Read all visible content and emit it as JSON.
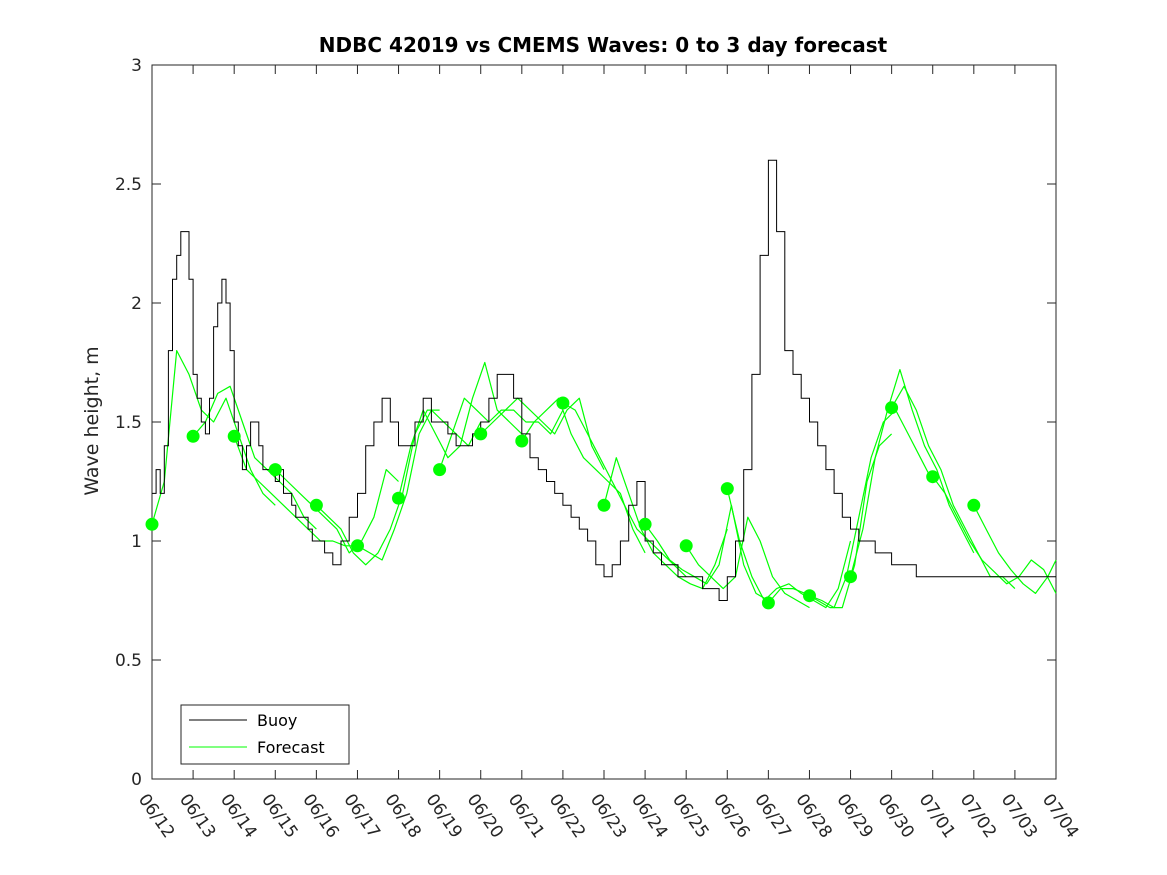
{
  "chart_data": {
    "type": "line",
    "title": "NDBC 42019 vs CMEMS Waves: 0 to 3 day forecast",
    "xlabel": "",
    "ylabel": "Wave height, m",
    "ylim": [
      0,
      3
    ],
    "yticks": [
      0,
      0.5,
      1,
      1.5,
      2,
      2.5,
      3
    ],
    "ytick_labels": [
      "0",
      "0.5",
      "1",
      "1.5",
      "2",
      "2.5",
      "3"
    ],
    "xlim": [
      "06/12",
      "07/04"
    ],
    "xtick_labels": [
      "06/12",
      "06/13",
      "06/14",
      "06/15",
      "06/16",
      "06/17",
      "06/18",
      "06/19",
      "06/20",
      "06/21",
      "06/22",
      "06/23",
      "06/24",
      "06/25",
      "06/26",
      "06/27",
      "06/28",
      "06/29",
      "06/30",
      "07/01",
      "07/02",
      "07/03",
      "07/04"
    ],
    "legend": {
      "placement": "bottom-left",
      "entries": [
        "Buoy",
        "Forecast"
      ]
    },
    "colors": {
      "buoy": "#000000",
      "forecast": "#00ff00",
      "axis": "#262626"
    },
    "series": [
      {
        "name": "Buoy",
        "color": "#000000",
        "x": [
          0,
          0.1,
          0.2,
          0.3,
          0.4,
          0.5,
          0.6,
          0.7,
          0.8,
          0.9,
          1.0,
          1.1,
          1.2,
          1.3,
          1.4,
          1.5,
          1.6,
          1.7,
          1.8,
          1.9,
          2.0,
          2.1,
          2.2,
          2.3,
          2.4,
          2.5,
          2.6,
          2.7,
          2.8,
          2.9,
          3.0,
          3.1,
          3.2,
          3.3,
          3.4,
          3.5,
          3.6,
          3.7,
          3.8,
          3.9,
          4.0,
          4.2,
          4.4,
          4.6,
          4.8,
          5.0,
          5.2,
          5.4,
          5.6,
          5.8,
          6.0,
          6.2,
          6.4,
          6.6,
          6.8,
          7.0,
          7.2,
          7.4,
          7.6,
          7.8,
          8.0,
          8.2,
          8.4,
          8.6,
          8.8,
          9.0,
          9.2,
          9.4,
          9.6,
          9.8,
          10.0,
          10.2,
          10.4,
          10.6,
          10.8,
          11.0,
          11.2,
          11.4,
          11.6,
          11.8,
          12.0,
          12.2,
          12.4,
          12.6,
          12.8,
          13.0,
          13.2,
          13.4,
          13.6,
          13.8,
          14.0,
          14.2,
          14.4,
          14.6,
          14.8,
          15.0,
          15.2,
          15.4,
          15.6,
          15.8,
          16.0,
          16.2,
          16.4,
          16.6,
          16.8,
          17.0,
          17.2,
          17.4,
          17.6,
          17.8,
          18.0,
          18.2,
          18.4,
          18.6,
          18.8,
          19.0,
          19.2,
          19.4,
          19.6,
          19.8,
          20.0,
          20.2,
          20.4,
          20.6,
          20.8,
          21.0,
          21.2,
          21.4,
          21.6,
          21.8,
          22.0
        ],
        "values": [
          1.2,
          1.3,
          1.2,
          1.4,
          1.8,
          2.1,
          2.2,
          2.3,
          2.3,
          2.1,
          1.7,
          1.6,
          1.5,
          1.45,
          1.6,
          1.9,
          2.0,
          2.1,
          2.0,
          1.8,
          1.5,
          1.4,
          1.3,
          1.4,
          1.5,
          1.5,
          1.4,
          1.3,
          1.3,
          1.3,
          1.25,
          1.3,
          1.2,
          1.2,
          1.15,
          1.1,
          1.1,
          1.1,
          1.05,
          1.0,
          1.0,
          0.95,
          0.9,
          1.0,
          1.1,
          1.2,
          1.4,
          1.5,
          1.6,
          1.5,
          1.4,
          1.4,
          1.5,
          1.6,
          1.5,
          1.5,
          1.45,
          1.4,
          1.4,
          1.45,
          1.5,
          1.6,
          1.7,
          1.7,
          1.6,
          1.45,
          1.35,
          1.3,
          1.25,
          1.2,
          1.15,
          1.1,
          1.05,
          1.0,
          0.9,
          0.85,
          0.9,
          1.0,
          1.15,
          1.25,
          1.0,
          0.95,
          0.9,
          0.9,
          0.85,
          0.85,
          0.85,
          0.8,
          0.8,
          0.75,
          0.85,
          1.0,
          1.3,
          1.7,
          2.2,
          2.6,
          2.3,
          1.8,
          1.7,
          1.6,
          1.5,
          1.4,
          1.3,
          1.2,
          1.1,
          1.05,
          1.0,
          1.0,
          0.95,
          0.95,
          0.9,
          0.9,
          0.9,
          0.85,
          0.85,
          0.85,
          0.85,
          0.85,
          0.85,
          0.85,
          0.85,
          0.85,
          0.85,
          0.85,
          0.85,
          0.85,
          0.85,
          0.85,
          0.85,
          0.85,
          0.85
        ]
      }
    ],
    "forecast_runs": [
      {
        "x": [
          0,
          0.3,
          0.6,
          0.9,
          1.2,
          1.5,
          1.8,
          2.1,
          2.4,
          2.7,
          3.0
        ],
        "values": [
          1.07,
          1.25,
          1.8,
          1.7,
          1.55,
          1.5,
          1.6,
          1.45,
          1.3,
          1.2,
          1.15
        ]
      },
      {
        "x": [
          1,
          1.3,
          1.6,
          1.9,
          2.2,
          2.5,
          2.8,
          3.1,
          3.4,
          3.7,
          4.0
        ],
        "values": [
          1.44,
          1.5,
          1.62,
          1.65,
          1.5,
          1.35,
          1.3,
          1.25,
          1.2,
          1.1,
          1.05
        ]
      },
      {
        "x": [
          2,
          2.3,
          2.6,
          2.9,
          3.2,
          3.5,
          3.8,
          4.1,
          4.4,
          4.7,
          5.0
        ],
        "values": [
          1.44,
          1.3,
          1.25,
          1.2,
          1.15,
          1.1,
          1.05,
          1.0,
          1.0,
          0.98,
          0.98
        ]
      },
      {
        "x": [
          3,
          3.3,
          3.6,
          3.9,
          4.2,
          4.5,
          4.8,
          5.1,
          5.4,
          5.7,
          6.0
        ],
        "values": [
          1.3,
          1.25,
          1.2,
          1.15,
          1.1,
          1.05,
          0.95,
          1.0,
          1.1,
          1.3,
          1.25
        ]
      },
      {
        "x": [
          4,
          4.3,
          4.6,
          4.9,
          5.2,
          5.5,
          5.8,
          6.1,
          6.4,
          6.7,
          7.0
        ],
        "values": [
          1.15,
          1.1,
          1.05,
          0.95,
          0.9,
          0.95,
          1.05,
          1.2,
          1.45,
          1.55,
          1.55
        ]
      },
      {
        "x": [
          5,
          5.3,
          5.6,
          5.9,
          6.2,
          6.5,
          6.8,
          7.1,
          7.4,
          7.7,
          8.0
        ],
        "values": [
          0.98,
          0.95,
          0.92,
          1.05,
          1.2,
          1.45,
          1.55,
          1.5,
          1.45,
          1.4,
          1.5
        ]
      },
      {
        "x": [
          6,
          6.3,
          6.6,
          6.9,
          7.2,
          7.5,
          7.8,
          8.1,
          8.4,
          8.7,
          9.0
        ],
        "values": [
          1.18,
          1.4,
          1.55,
          1.45,
          1.35,
          1.4,
          1.6,
          1.75,
          1.55,
          1.5,
          1.45
        ]
      },
      {
        "x": [
          7,
          7.3,
          7.6,
          7.9,
          8.2,
          8.5,
          8.8,
          9.1,
          9.4,
          9.7,
          10.0
        ],
        "values": [
          1.3,
          1.45,
          1.6,
          1.55,
          1.5,
          1.55,
          1.55,
          1.5,
          1.5,
          1.45,
          1.55
        ]
      },
      {
        "x": [
          8,
          8.3,
          8.6,
          8.9,
          9.2,
          9.5,
          9.8,
          10.1,
          10.4,
          10.7,
          11.0
        ],
        "values": [
          1.45,
          1.5,
          1.55,
          1.6,
          1.55,
          1.5,
          1.45,
          1.55,
          1.6,
          1.4,
          1.3
        ]
      },
      {
        "x": [
          9,
          9.3,
          9.6,
          9.9,
          10.2,
          10.5,
          10.8,
          11.1,
          11.4,
          11.7,
          12.0
        ],
        "values": [
          1.42,
          1.5,
          1.55,
          1.6,
          1.45,
          1.35,
          1.3,
          1.25,
          1.2,
          1.05,
          0.95
        ]
      },
      {
        "x": [
          10,
          10.3,
          10.6,
          10.9,
          11.2,
          11.5,
          11.8,
          12.1,
          12.4,
          12.7,
          13.0
        ],
        "values": [
          1.58,
          1.55,
          1.45,
          1.35,
          1.25,
          1.15,
          1.05,
          1.0,
          0.95,
          0.9,
          0.85
        ]
      },
      {
        "x": [
          11,
          11.3,
          11.6,
          11.9,
          12.2,
          12.5,
          12.8,
          13.1,
          13.4,
          13.7,
          14.0
        ],
        "values": [
          1.15,
          1.35,
          1.2,
          1.05,
          0.95,
          0.9,
          0.85,
          0.82,
          0.8,
          0.9,
          1.05
        ]
      },
      {
        "x": [
          12,
          12.3,
          12.6,
          12.9,
          13.2,
          13.5,
          13.8,
          14.1,
          14.4,
          14.7,
          15.0
        ],
        "values": [
          1.07,
          1.0,
          0.92,
          0.88,
          0.85,
          0.82,
          0.9,
          1.15,
          0.9,
          0.78,
          0.75
        ]
      },
      {
        "x": [
          13,
          13.3,
          13.6,
          13.9,
          14.2,
          14.5,
          14.8,
          15.1,
          15.4,
          15.7,
          16.0
        ],
        "values": [
          0.98,
          0.9,
          0.85,
          0.8,
          0.85,
          1.1,
          1.0,
          0.85,
          0.78,
          0.75,
          0.72
        ]
      },
      {
        "x": [
          14,
          14.3,
          14.6,
          14.9,
          15.2,
          15.5,
          15.8,
          16.1,
          16.4,
          16.7,
          17.0
        ],
        "values": [
          1.22,
          1.0,
          0.85,
          0.75,
          0.8,
          0.82,
          0.78,
          0.75,
          0.72,
          0.8,
          1.0
        ]
      },
      {
        "x": [
          15,
          15.3,
          15.6,
          15.9,
          16.2,
          16.5,
          16.8,
          17.1,
          17.4,
          17.7,
          18.0
        ],
        "values": [
          0.74,
          0.8,
          0.8,
          0.78,
          0.75,
          0.72,
          0.72,
          0.9,
          1.25,
          1.4,
          1.45
        ]
      },
      {
        "x": [
          16,
          16.3,
          16.6,
          16.9,
          17.2,
          17.5,
          17.8,
          18.1,
          18.4,
          18.7,
          19.0
        ],
        "values": [
          0.77,
          0.75,
          0.72,
          0.85,
          1.1,
          1.35,
          1.5,
          1.55,
          1.45,
          1.35,
          1.25
        ]
      },
      {
        "x": [
          17,
          17.3,
          17.6,
          17.9,
          18.2,
          18.5,
          18.8,
          19.1,
          19.4,
          19.7,
          20.0
        ],
        "values": [
          0.85,
          1.05,
          1.35,
          1.55,
          1.72,
          1.55,
          1.4,
          1.3,
          1.15,
          1.05,
          0.95
        ]
      },
      {
        "x": [
          18,
          18.3,
          18.6,
          18.9,
          19.2,
          19.5,
          19.8,
          20.1,
          20.4,
          20.7,
          21.0
        ],
        "values": [
          1.56,
          1.65,
          1.55,
          1.4,
          1.3,
          1.15,
          1.05,
          0.95,
          0.85,
          0.85,
          0.8
        ]
      },
      {
        "x": [
          19,
          19.3,
          19.6,
          19.9,
          20.2,
          20.5,
          20.8,
          21.1,
          21.4,
          21.7,
          22.0
        ],
        "values": [
          1.27,
          1.2,
          1.1,
          1.0,
          0.92,
          0.87,
          0.82,
          0.85,
          0.92,
          0.88,
          0.78
        ]
      },
      {
        "x": [
          20,
          20.3,
          20.6,
          20.9,
          21.2,
          21.5,
          21.8,
          22.0
        ],
        "values": [
          1.15,
          1.05,
          0.95,
          0.88,
          0.82,
          0.78,
          0.85,
          0.92
        ]
      }
    ],
    "forecast_points": {
      "name": "Forecast",
      "color": "#00ff00",
      "x": [
        0,
        1,
        2,
        3,
        4,
        5,
        6,
        7,
        8,
        9,
        10,
        11,
        12,
        13,
        14,
        15,
        16,
        17,
        18,
        19,
        20
      ],
      "values": [
        1.07,
        1.44,
        1.44,
        1.3,
        1.15,
        0.98,
        1.18,
        1.3,
        1.45,
        1.42,
        1.58,
        1.15,
        1.07,
        0.98,
        1.22,
        0.74,
        0.77,
        0.85,
        1.56,
        1.27,
        1.15
      ]
    }
  }
}
